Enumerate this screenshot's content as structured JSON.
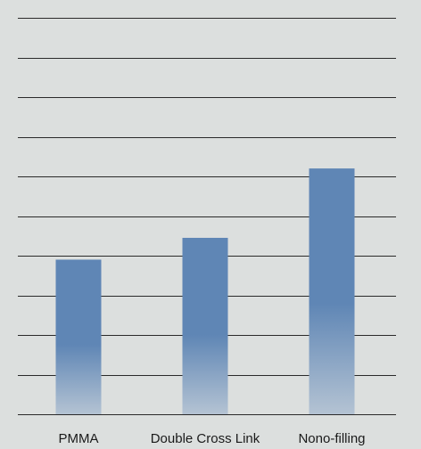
{
  "chart_data": {
    "type": "bar",
    "categories": [
      "PMMA",
      "Double Cross Link",
      "Nono-filling"
    ],
    "values": [
      3.9,
      4.45,
      6.2
    ],
    "ylim": [
      0,
      10
    ],
    "grid": true,
    "title": "",
    "xlabel": "",
    "ylabel": "",
    "colors": {
      "background": "#dcdfde",
      "bar_top": "#5f86b5",
      "bar_bottom": "#b4c3d3",
      "grid": "#2a2a2a"
    }
  }
}
